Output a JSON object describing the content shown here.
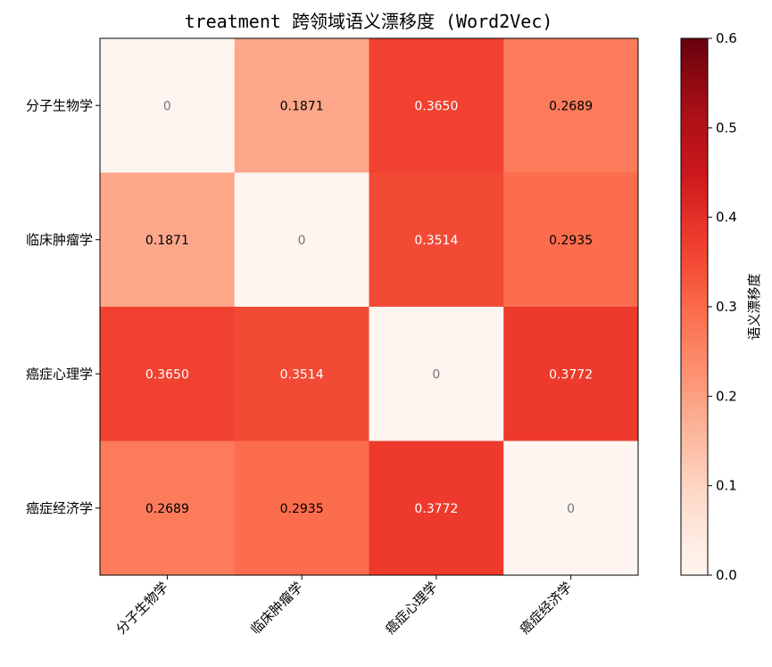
{
  "chart_data": {
    "type": "heatmap",
    "title": "treatment 跨领域语义漂移度 (Word2Vec)",
    "rows": [
      "分子生物学",
      "临床肿瘤学",
      "癌症心理学",
      "癌症经济学"
    ],
    "columns": [
      "分子生物学",
      "临床肿瘤学",
      "癌症心理学",
      "癌症经济学"
    ],
    "values": [
      [
        0,
        0.1871,
        0.365,
        0.2689
      ],
      [
        0.1871,
        0,
        0.3514,
        0.2935
      ],
      [
        0.365,
        0.3514,
        0,
        0.3772
      ],
      [
        0.2689,
        0.2935,
        0.3772,
        0
      ]
    ],
    "cell_labels": [
      [
        "0",
        "0.1871",
        "0.3650",
        "0.2689"
      ],
      [
        "0.1871",
        "0",
        "0.3514",
        "0.2935"
      ],
      [
        "0.3650",
        "0.3514",
        "0",
        "0.3772"
      ],
      [
        "0.2689",
        "0.2935",
        "0.3772",
        "0"
      ]
    ],
    "colorscale": "Reds",
    "vmin": 0,
    "vmax": 0.6,
    "colorbar": {
      "label": "语义漂移度",
      "ticks": [
        0.0,
        0.1,
        0.2,
        0.3,
        0.4,
        0.5,
        0.6
      ],
      "tick_labels": [
        "0.0",
        "0.1",
        "0.2",
        "0.3",
        "0.4",
        "0.5",
        "0.6"
      ],
      "placement": "right"
    },
    "grid": false
  }
}
